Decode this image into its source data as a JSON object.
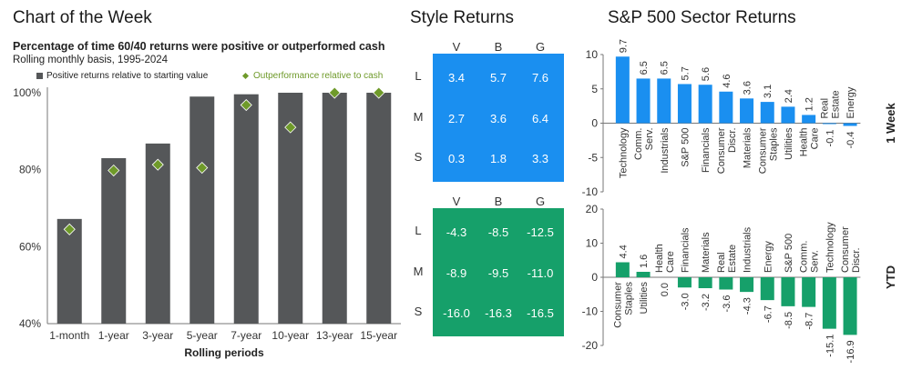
{
  "left": {
    "header": "Chart of the Week",
    "title": "Percentage of time 60/40 returns were positive or outperformed cash",
    "subtitle": "Rolling monthly basis, 1995-2024",
    "legend": {
      "positive": "Positive returns relative to starting value",
      "outperf": "Outperformance relative to cash"
    },
    "colors": {
      "bar": "#555759",
      "marker": "#6f9a2a"
    }
  },
  "style": {
    "header": "Style Returns",
    "columns": [
      "V",
      "B",
      "G"
    ],
    "rows": [
      "L",
      "M",
      "S"
    ],
    "week": [
      [
        "3.4",
        "5.7",
        "7.6"
      ],
      [
        "2.7",
        "3.6",
        "6.4"
      ],
      [
        "0.3",
        "1.8",
        "3.3"
      ]
    ],
    "ytd": [
      [
        "-4.3",
        "-8.5",
        "-12.5"
      ],
      [
        "-8.9",
        "-9.5",
        "-11.0"
      ],
      [
        "-16.0",
        "-16.3",
        "-16.5"
      ]
    ],
    "colors": {
      "week": "#1a8ff0",
      "ytd": "#16a06a"
    }
  },
  "sector": {
    "header": "S&P 500 Sector Returns",
    "colors": {
      "week": "#1a8ff0",
      "ytd": "#16a06a"
    }
  },
  "chart_data": [
    {
      "type": "bar",
      "title": "Percentage of time 60/40 returns were positive or outperformed cash",
      "subtitle": "Rolling monthly basis, 1995-2024",
      "categories": [
        "1-month",
        "1-year",
        "3-year",
        "5-year",
        "7-year",
        "10-year",
        "13-year",
        "15-year"
      ],
      "xlabel": "Rolling periods",
      "ylabel": "",
      "ylim": [
        40,
        100
      ],
      "yticks": [
        "40%",
        "60%",
        "80%",
        "100%"
      ],
      "series": [
        {
          "name": "Positive returns relative to starting value",
          "type": "bar",
          "values": [
            67.2,
            83.0,
            86.8,
            99.0,
            99.6,
            100,
            100,
            100
          ]
        },
        {
          "name": "Outperformance relative to cash",
          "type": "scatter",
          "values": [
            64.5,
            79.8,
            81.3,
            80.5,
            96.8,
            91.0,
            100,
            100
          ]
        }
      ],
      "legend": "top"
    },
    {
      "type": "bar",
      "panel_label": "1 Week",
      "categories": [
        "Technology",
        "Comm. Serv.",
        "Industrials",
        "S&P 500",
        "Financials",
        "Consumer Discr.",
        "Materials",
        "Consumer Staples",
        "Utilities",
        "Health Care",
        "Real Estate",
        "Energy"
      ],
      "values": [
        9.7,
        6.5,
        6.5,
        5.7,
        5.6,
        4.6,
        3.6,
        3.1,
        2.4,
        1.2,
        -0.1,
        -0.4
      ],
      "data_labels": [
        "9.7",
        "6.5",
        "6.5",
        "5.7",
        "5.6",
        "4.6",
        "3.6",
        "3.1",
        "2.4",
        "1.2",
        "-0.1",
        "-0.4"
      ],
      "ylim": [
        -10,
        10
      ],
      "yticks": [
        "-10",
        "-5",
        "0",
        "5",
        "10"
      ]
    },
    {
      "type": "bar",
      "panel_label": "YTD",
      "categories": [
        "Consumer Staples",
        "Utilities",
        "Health Care",
        "Financials",
        "Materials",
        "Real Estate",
        "Industrials",
        "Energy",
        "S&P 500",
        "Comm. Serv.",
        "Technology",
        "Consumer Discr."
      ],
      "values": [
        4.4,
        1.6,
        0.0,
        -3.0,
        -3.2,
        -3.6,
        -4.3,
        -6.7,
        -8.5,
        -8.7,
        -15.1,
        -16.9
      ],
      "data_labels": [
        "4.4",
        "1.6",
        "0.0",
        "-3.0",
        "-3.2",
        "-3.6",
        "-4.3",
        "-6.7",
        "-8.5",
        "-8.7",
        "-15.1",
        "-16.9"
      ],
      "ylim": [
        -20,
        20
      ],
      "yticks": [
        "-20",
        "-10",
        "0",
        "10",
        "20"
      ]
    }
  ]
}
